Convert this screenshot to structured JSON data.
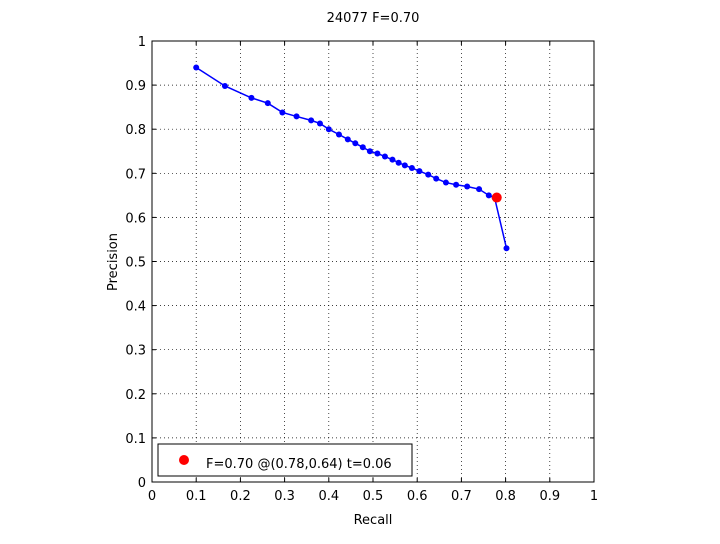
{
  "chart_data": {
    "type": "line",
    "title": "24077 F=0.70",
    "xlabel": "Recall",
    "ylabel": "Precision",
    "xlim": [
      0,
      1
    ],
    "ylim": [
      0,
      1
    ],
    "x_ticks": [
      "0",
      "0.1",
      "0.2",
      "0.3",
      "0.4",
      "0.5",
      "0.6",
      "0.7",
      "0.8",
      "0.9",
      "1"
    ],
    "y_ticks": [
      "0",
      "0.1",
      "0.2",
      "0.3",
      "0.4",
      "0.5",
      "0.6",
      "0.7",
      "0.8",
      "0.9",
      "1"
    ],
    "grid": true,
    "legend_position": "bottom-left",
    "legend_text": "F=0.70 @(0.78,0.64) t=0.06",
    "series": [
      {
        "color": "#0000ff",
        "points": [
          [
            0.1,
            0.94
          ],
          [
            0.165,
            0.898
          ],
          [
            0.225,
            0.871
          ],
          [
            0.262,
            0.859
          ],
          [
            0.295,
            0.838
          ],
          [
            0.327,
            0.829
          ],
          [
            0.36,
            0.82
          ],
          [
            0.38,
            0.813
          ],
          [
            0.4,
            0.8
          ],
          [
            0.423,
            0.788
          ],
          [
            0.443,
            0.777
          ],
          [
            0.46,
            0.768
          ],
          [
            0.477,
            0.759
          ],
          [
            0.493,
            0.75
          ],
          [
            0.51,
            0.745
          ],
          [
            0.527,
            0.738
          ],
          [
            0.544,
            0.731
          ],
          [
            0.558,
            0.724
          ],
          [
            0.572,
            0.718
          ],
          [
            0.588,
            0.712
          ],
          [
            0.605,
            0.705
          ],
          [
            0.625,
            0.697
          ],
          [
            0.643,
            0.688
          ],
          [
            0.665,
            0.679
          ],
          [
            0.688,
            0.674
          ],
          [
            0.713,
            0.67
          ],
          [
            0.74,
            0.664
          ],
          [
            0.762,
            0.65
          ],
          [
            0.775,
            0.645
          ],
          [
            0.802,
            0.53
          ]
        ]
      }
    ],
    "highlight": {
      "x": 0.78,
      "y": 0.645,
      "color": "#ff0000"
    }
  }
}
